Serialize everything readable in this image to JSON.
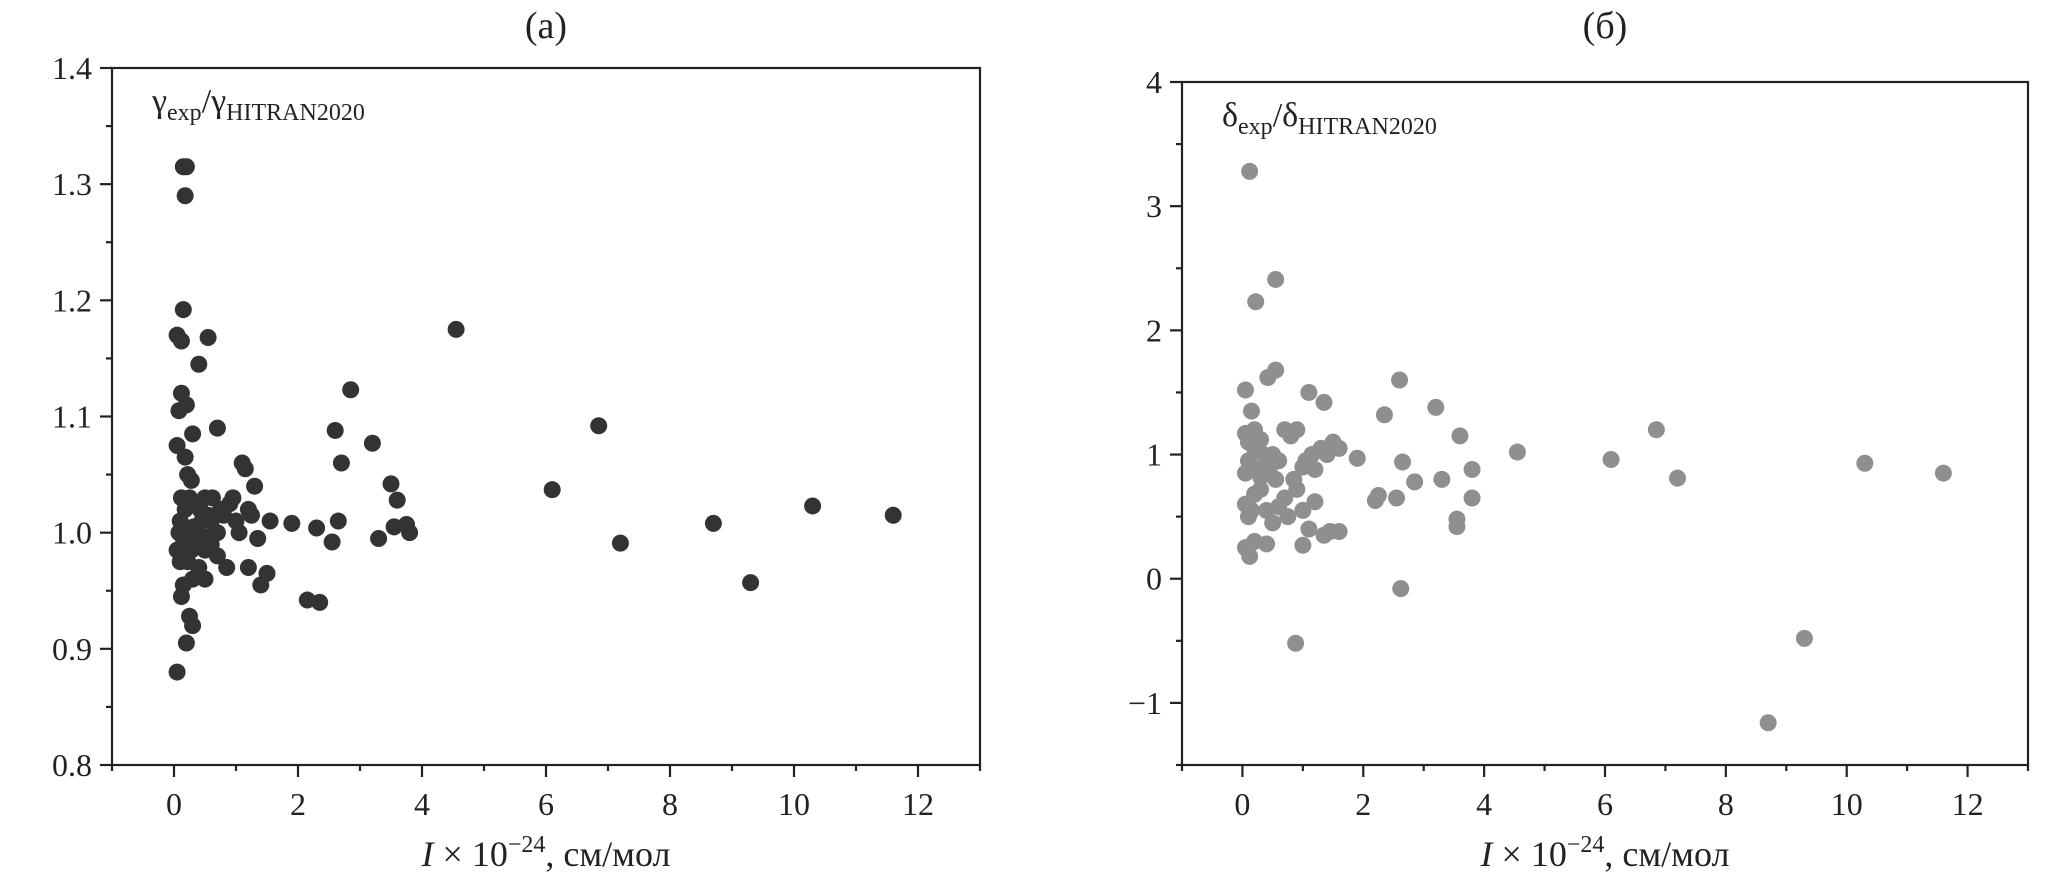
{
  "chart_data": [
    {
      "type": "scatter",
      "panel_label": "(а)",
      "ylabel": {
        "main": "γ",
        "sub1": "exp",
        "slash": "/",
        "main2": "γ",
        "sub2": "HITRAN2020"
      },
      "xlabel": {
        "var": "I",
        "rest": " × 10",
        "exp": "−24",
        "unit": ", см/мол"
      },
      "xlim": [
        -1,
        13
      ],
      "ylim": [
        0.8,
        1.4
      ],
      "xticks": [
        0,
        2,
        4,
        6,
        8,
        10,
        12
      ],
      "xtick_labels": [
        "0",
        "2",
        "4",
        "6",
        "8",
        "10",
        "12"
      ],
      "yticks": [
        0.8,
        0.9,
        1.0,
        1.1,
        1.2,
        1.3,
        1.4
      ],
      "ytick_labels": [
        "0.8",
        "0.9",
        "1.0",
        "1.1",
        "1.2",
        "1.3",
        "1.4"
      ],
      "color": "#333333",
      "points": [
        [
          0.05,
          0.88
        ],
        [
          0.12,
          0.945
        ],
        [
          0.2,
          0.905
        ],
        [
          0.25,
          0.928
        ],
        [
          0.3,
          0.92
        ],
        [
          0.15,
          0.995
        ],
        [
          0.08,
          1.0
        ],
        [
          0.1,
          1.01
        ],
        [
          0.18,
          1.02
        ],
        [
          0.05,
          0.985
        ],
        [
          0.22,
          0.975
        ],
        [
          0.28,
          0.985
        ],
        [
          0.35,
          0.99
        ],
        [
          0.4,
          1.0
        ],
        [
          0.32,
          1.005
        ],
        [
          0.12,
          1.03
        ],
        [
          0.25,
          1.03
        ],
        [
          0.42,
          1.02
        ],
        [
          0.5,
          1.03
        ],
        [
          0.55,
          1.015
        ],
        [
          0.6,
          1.01
        ],
        [
          0.45,
          0.995
        ],
        [
          0.5,
          0.96
        ],
        [
          0.65,
          1.0
        ],
        [
          0.7,
          0.98
        ],
        [
          0.75,
          1.02
        ],
        [
          0.8,
          1.015
        ],
        [
          0.9,
          1.025
        ],
        [
          0.95,
          1.03
        ],
        [
          0.85,
          0.97
        ],
        [
          1.0,
          1.01
        ],
        [
          1.05,
          1.0
        ],
        [
          1.1,
          1.06
        ],
        [
          1.15,
          1.055
        ],
        [
          1.2,
          1.02
        ],
        [
          1.25,
          1.015
        ],
        [
          1.3,
          1.04
        ],
        [
          1.35,
          0.995
        ],
        [
          1.4,
          0.955
        ],
        [
          1.5,
          0.965
        ],
        [
          1.55,
          1.01
        ],
        [
          1.2,
          0.97
        ],
        [
          0.62,
          1.03
        ],
        [
          0.7,
          1.09
        ],
        [
          0.05,
          1.075
        ],
        [
          0.08,
          1.105
        ],
        [
          0.12,
          1.12
        ],
        [
          0.2,
          1.11
        ],
        [
          0.18,
          1.065
        ],
        [
          0.22,
          1.05
        ],
        [
          0.3,
          1.085
        ],
        [
          0.28,
          1.045
        ],
        [
          0.05,
          1.17
        ],
        [
          0.12,
          1.165
        ],
        [
          0.15,
          1.192
        ],
        [
          0.4,
          1.145
        ],
        [
          0.55,
          1.168
        ],
        [
          0.18,
          1.29
        ],
        [
          0.15,
          1.315
        ],
        [
          0.2,
          1.315
        ],
        [
          0.35,
          1.025
        ],
        [
          0.6,
          0.99
        ],
        [
          0.1,
          0.975
        ],
        [
          0.3,
          0.96
        ],
        [
          0.4,
          0.97
        ],
        [
          0.5,
          0.985
        ],
        [
          0.25,
          1.0
        ],
        [
          0.15,
          0.955
        ],
        [
          0.45,
          1.01
        ],
        [
          0.7,
          1.0
        ],
        [
          1.9,
          1.008
        ],
        [
          2.15,
          0.942
        ],
        [
          2.3,
          1.004
        ],
        [
          2.35,
          0.94
        ],
        [
          2.55,
          0.992
        ],
        [
          2.6,
          1.088
        ],
        [
          2.65,
          1.01
        ],
        [
          2.7,
          1.06
        ],
        [
          2.85,
          1.123
        ],
        [
          3.2,
          1.077
        ],
        [
          3.3,
          0.995
        ],
        [
          3.5,
          1.042
        ],
        [
          3.55,
          1.005
        ],
        [
          3.6,
          1.028
        ],
        [
          3.75,
          1.007
        ],
        [
          3.8,
          1.0
        ],
        [
          4.55,
          1.175
        ],
        [
          6.1,
          1.037
        ],
        [
          6.85,
          1.092
        ],
        [
          7.2,
          0.991
        ],
        [
          8.7,
          1.008
        ],
        [
          9.3,
          0.957
        ],
        [
          10.3,
          1.023
        ],
        [
          11.6,
          1.015
        ]
      ]
    },
    {
      "type": "scatter",
      "panel_label": "(б)",
      "ylabel": {
        "main": "δ",
        "sub1": "exp",
        "slash": "/",
        "main2": "δ",
        "sub2": "HITRAN2020"
      },
      "xlabel": {
        "var": "I",
        "rest": " × 10",
        "exp": "−24",
        "unit": ", см/мол"
      },
      "xlim": [
        -1,
        13
      ],
      "ylim": [
        -1.5,
        4
      ],
      "xticks": [
        0,
        2,
        4,
        6,
        8,
        10,
        12
      ],
      "xtick_labels": [
        "0",
        "2",
        "4",
        "6",
        "8",
        "10",
        "12"
      ],
      "yticks": [
        -1,
        0,
        1,
        2,
        3,
        4
      ],
      "ytick_labels": [
        "−1",
        "0",
        "1",
        "2",
        "3",
        "4"
      ],
      "color": "#8f8f8f",
      "points": [
        [
          0.12,
          3.28
        ],
        [
          0.22,
          2.23
        ],
        [
          0.55,
          2.41
        ],
        [
          0.55,
          1.68
        ],
        [
          0.42,
          1.62
        ],
        [
          0.05,
          1.52
        ],
        [
          0.15,
          1.35
        ],
        [
          0.2,
          1.2
        ],
        [
          0.05,
          1.17
        ],
        [
          0.1,
          1.1
        ],
        [
          0.2,
          1.05
        ],
        [
          0.3,
          1.12
        ],
        [
          0.35,
          1.0
        ],
        [
          0.1,
          0.95
        ],
        [
          0.15,
          0.9
        ],
        [
          0.05,
          0.85
        ],
        [
          0.25,
          0.88
        ],
        [
          0.3,
          0.82
        ],
        [
          0.4,
          0.95
        ],
        [
          0.45,
          0.9
        ],
        [
          0.5,
          1.0
        ],
        [
          0.55,
          0.8
        ],
        [
          0.6,
          0.95
        ],
        [
          0.7,
          1.2
        ],
        [
          0.8,
          1.15
        ],
        [
          0.85,
          0.8
        ],
        [
          0.9,
          1.2
        ],
        [
          1.0,
          0.9
        ],
        [
          1.05,
          0.95
        ],
        [
          1.1,
          1.5
        ],
        [
          1.15,
          1.0
        ],
        [
          1.2,
          0.88
        ],
        [
          1.3,
          1.05
        ],
        [
          1.35,
          1.42
        ],
        [
          1.4,
          1.0
        ],
        [
          1.5,
          1.1
        ],
        [
          1.6,
          1.05
        ],
        [
          0.05,
          0.6
        ],
        [
          0.1,
          0.5
        ],
        [
          0.15,
          0.55
        ],
        [
          0.2,
          0.68
        ],
        [
          0.3,
          0.72
        ],
        [
          0.4,
          0.55
        ],
        [
          0.5,
          0.45
        ],
        [
          0.6,
          0.58
        ],
        [
          0.7,
          0.65
        ],
        [
          0.75,
          0.5
        ],
        [
          0.9,
          0.72
        ],
        [
          1.0,
          0.55
        ],
        [
          1.1,
          0.4
        ],
        [
          1.2,
          0.62
        ],
        [
          1.35,
          0.35
        ],
        [
          1.45,
          0.38
        ],
        [
          1.6,
          0.38
        ],
        [
          0.05,
          0.25
        ],
        [
          0.12,
          0.18
        ],
        [
          0.2,
          0.3
        ],
        [
          0.4,
          0.28
        ],
        [
          1.0,
          0.27
        ],
        [
          0.88,
          -0.52
        ],
        [
          1.9,
          0.97
        ],
        [
          2.2,
          0.63
        ],
        [
          2.25,
          0.67
        ],
        [
          2.35,
          1.32
        ],
        [
          2.55,
          0.65
        ],
        [
          2.6,
          1.6
        ],
        [
          2.65,
          0.94
        ],
        [
          2.62,
          -0.08
        ],
        [
          2.85,
          0.78
        ],
        [
          3.2,
          1.38
        ],
        [
          3.3,
          0.8
        ],
        [
          3.55,
          0.48
        ],
        [
          3.55,
          0.42
        ],
        [
          3.6,
          1.15
        ],
        [
          3.8,
          0.88
        ],
        [
          3.8,
          0.65
        ],
        [
          4.55,
          1.02
        ],
        [
          6.1,
          0.96
        ],
        [
          6.85,
          1.2
        ],
        [
          7.2,
          0.81
        ],
        [
          8.7,
          -1.16
        ],
        [
          9.3,
          -0.48
        ],
        [
          10.3,
          0.93
        ],
        [
          11.6,
          0.85
        ]
      ]
    }
  ]
}
